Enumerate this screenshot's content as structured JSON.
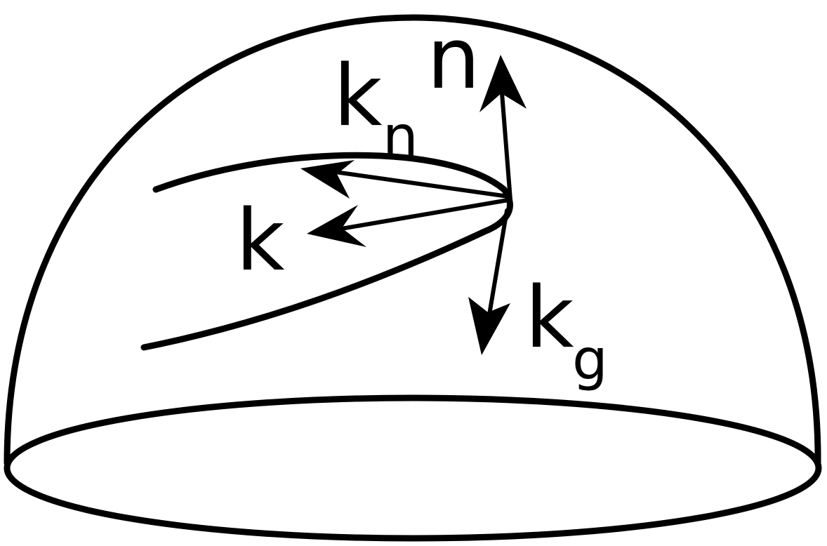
{
  "labels": {
    "n": "n",
    "k": "k",
    "kn_base": "k",
    "kn_sub": "n",
    "kg_base": "k",
    "kg_sub": "g"
  },
  "colors": {
    "stroke": "#000000",
    "background": "#ffffff"
  }
}
